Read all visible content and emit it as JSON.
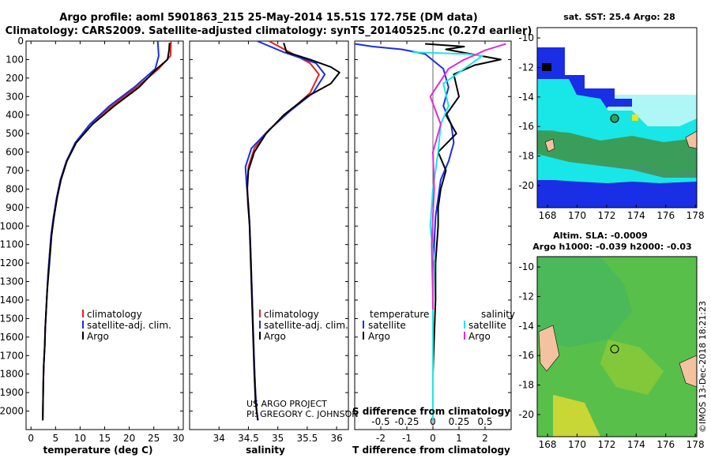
{
  "title": {
    "line1": "Argo profile: aoml 5901863_215 25-May-2014 15.51S 172.75E (DM data)",
    "line2": "Climatology: CARS2009. Satellite-adjusted climatology: synTS_20140525.nc (0.27d earlier)"
  },
  "credits": {
    "project": "US ARGO PROJECT",
    "pi": "PI: GREGORY C. JOHNSON",
    "imos": "©IMOS 13-Dec-2018 18:21:23"
  },
  "map_titles": {
    "sst": "sat. SST: 25.4 Argo: 28",
    "sla1": "Altim. SLA: -0.0009",
    "sla2": "Argo h1000: -0.039 h2000: -0.03"
  },
  "colors": {
    "red": "#e8201a",
    "blue": "#1a2ee6",
    "black": "#000000",
    "cyan": "#19e6e6",
    "magenta": "#e629d9"
  },
  "chart_data": [
    {
      "type": "line",
      "name": "temperature-profile",
      "xlabel": "temperature (deg C)",
      "xlim": [
        -1,
        31
      ],
      "ylim": [
        2100,
        0
      ],
      "xticks": [
        0,
        5,
        10,
        15,
        20,
        25,
        30
      ],
      "yticks": [
        0,
        100,
        200,
        300,
        400,
        500,
        600,
        700,
        800,
        900,
        1000,
        1100,
        1200,
        1300,
        1400,
        1500,
        1600,
        1700,
        1800,
        1900,
        2000
      ],
      "legend": [
        "climatology",
        "satellite-adj. clim.",
        "Argo"
      ],
      "series": [
        {
          "name": "climatology",
          "color": "red",
          "x": [
            28.5,
            28.4,
            26.0,
            21.5,
            16.5,
            12.0,
            9.0,
            7.2,
            6.0,
            5.2,
            4.6,
            4.1,
            3.8,
            3.5,
            3.3,
            3.1,
            2.9,
            2.8,
            2.6,
            2.5,
            2.4
          ],
          "y": [
            0,
            80,
            150,
            250,
            350,
            450,
            550,
            650,
            750,
            850,
            950,
            1050,
            1150,
            1250,
            1350,
            1450,
            1550,
            1650,
            1750,
            1850,
            2050
          ]
        },
        {
          "name": "satellite-adj. clim.",
          "color": "blue",
          "x": [
            25.8,
            26.0,
            25.3,
            21.0,
            16.0,
            12.0,
            9.0,
            7.2,
            6.0,
            5.2,
            4.6,
            4.1,
            3.8,
            3.5,
            3.3,
            3.1,
            2.9,
            2.8,
            2.6,
            2.5,
            2.4
          ],
          "y": [
            0,
            80,
            150,
            250,
            350,
            450,
            550,
            650,
            750,
            850,
            950,
            1050,
            1150,
            1250,
            1350,
            1450,
            1550,
            1650,
            1750,
            1850,
            2050
          ]
        },
        {
          "name": "Argo",
          "color": "black",
          "x": [
            28.2,
            28.1,
            27.8,
            25.6,
            22.0,
            17.0,
            12.5,
            9.2,
            7.3,
            6.1,
            5.3,
            4.7,
            4.2,
            3.9,
            3.6,
            3.3,
            3.1,
            2.9,
            2.8,
            2.6,
            2.5,
            2.4
          ],
          "y": [
            10,
            50,
            100,
            150,
            250,
            350,
            450,
            550,
            650,
            750,
            850,
            950,
            1050,
            1150,
            1250,
            1350,
            1450,
            1550,
            1650,
            1750,
            1850,
            2050
          ]
        }
      ]
    },
    {
      "type": "line",
      "name": "salinity-profile",
      "xlabel": "salinity",
      "xlim": [
        33.5,
        36.2
      ],
      "ylim": [
        2100,
        0
      ],
      "xticks": [
        34,
        34.5,
        35,
        35.5,
        36
      ],
      "legend": [
        "climatology",
        "satellite-adj. clim.",
        "Argo"
      ],
      "series": [
        {
          "name": "climatology",
          "color": "red",
          "x": [
            34.85,
            35.2,
            35.55,
            35.7,
            35.55,
            35.2,
            34.85,
            34.6,
            34.5,
            34.48,
            34.49,
            34.52,
            34.54,
            34.56,
            34.58,
            34.6,
            34.62,
            34.64,
            34.66
          ],
          "y": [
            0,
            60,
            120,
            180,
            280,
            380,
            480,
            580,
            680,
            780,
            880,
            980,
            1150,
            1350,
            1550,
            1750,
            1900,
            2000,
            2050
          ]
        },
        {
          "name": "satellite-adj. clim.",
          "color": "blue",
          "x": [
            34.65,
            35.1,
            35.65,
            35.8,
            35.6,
            35.2,
            34.85,
            34.55,
            34.45,
            34.47,
            34.5,
            34.52,
            34.54,
            34.56,
            34.58,
            34.6,
            34.62,
            34.64,
            34.66
          ],
          "y": [
            0,
            60,
            120,
            180,
            280,
            380,
            480,
            580,
            680,
            780,
            880,
            980,
            1150,
            1350,
            1550,
            1750,
            1900,
            2000,
            2050
          ]
        },
        {
          "name": "Argo",
          "color": "black",
          "x": [
            35.1,
            35.15,
            35.55,
            35.9,
            36.05,
            35.9,
            35.5,
            35.1,
            34.8,
            34.6,
            34.5,
            34.48,
            34.5,
            34.52,
            34.54,
            34.56,
            34.58,
            34.6,
            34.62,
            34.64,
            34.66
          ],
          "y": [
            10,
            60,
            100,
            140,
            170,
            230,
            300,
            400,
            500,
            600,
            700,
            800,
            900,
            1000,
            1200,
            1400,
            1600,
            1800,
            1950,
            2000,
            2050
          ]
        }
      ]
    },
    {
      "type": "line",
      "name": "difference-profile",
      "xlabel": "T difference from climatology",
      "xlabel_top": "S difference from climatology",
      "xlim": [
        -3,
        3
      ],
      "ylim": [
        2100,
        0
      ],
      "xticks": [
        -2,
        -1,
        0,
        1,
        2
      ],
      "xticks_top": [
        "-0.5",
        "-0.25",
        "0",
        "0.25",
        "0.5"
      ],
      "xticks_top_pos": [
        -2,
        -1,
        0,
        1,
        2
      ],
      "legend_left_title": "temperature",
      "legend_right_title": "salinity",
      "legend_left": [
        "satellite",
        "Argo"
      ],
      "legend_right": [
        "satellite",
        "Argo"
      ],
      "series": [
        {
          "name": "T satellite",
          "color": "blue",
          "x": [
            -3.0,
            -2.3,
            -1.2,
            -0.3,
            0.4,
            0.6,
            0.4,
            0.7,
            0.8,
            0.6,
            0.3,
            0.2,
            0.1,
            0.05,
            0.0,
            0.0,
            0.0,
            0.0,
            0.0
          ],
          "y": [
            15,
            30,
            45,
            70,
            150,
            250,
            350,
            450,
            550,
            650,
            750,
            850,
            950,
            1100,
            1300,
            1500,
            1700,
            1900,
            2050
          ]
        },
        {
          "name": "T Argo",
          "color": "black",
          "x": [
            -0.3,
            1.2,
            0.5,
            2.6,
            1.6,
            0.8,
            1.0,
            0.5,
            0.9,
            0.2,
            0.5,
            0.3,
            0.2,
            0.2,
            0.1,
            0.1,
            0.05,
            0.0,
            0.0
          ],
          "y": [
            15,
            30,
            45,
            100,
            130,
            180,
            300,
            400,
            500,
            600,
            700,
            800,
            900,
            1000,
            1200,
            1400,
            1600,
            1800,
            2050
          ]
        },
        {
          "name": "S satellite",
          "color": "cyan",
          "x": [
            -0.8,
            1.3,
            1.9,
            1.2,
            0.4,
            0.6,
            0.3,
            0.2,
            0.0,
            -0.1,
            0.05,
            0.0,
            0.0,
            0.0,
            0.0
          ],
          "y": [
            60,
            70,
            80,
            150,
            230,
            350,
            450,
            600,
            800,
            1000,
            1200,
            1400,
            1600,
            1800,
            2050
          ]
        },
        {
          "name": "S Argo",
          "color": "magenta",
          "x": [
            2.8,
            2.0,
            1.7,
            1.2,
            0.6,
            -0.1,
            0.3,
            0.0,
            0.05,
            -0.05,
            0.0,
            0.0
          ],
          "y": [
            15,
            50,
            70,
            100,
            150,
            300,
            450,
            600,
            800,
            1100,
            1400,
            1450
          ]
        }
      ]
    },
    {
      "type": "heatmap",
      "name": "sst-map",
      "xticks": [
        168,
        170,
        172,
        174,
        176,
        178
      ],
      "yticks": [
        -10,
        -12,
        -14,
        -16,
        -18,
        -20
      ],
      "xlim": [
        167.3,
        178.1
      ],
      "ylim": [
        -21.5,
        -9.3
      ],
      "float_lon": 172.75,
      "float_lat": -15.51
    },
    {
      "type": "heatmap",
      "name": "sla-map",
      "xticks": [
        168,
        170,
        172,
        174,
        176,
        178
      ],
      "yticks": [
        -10,
        -12,
        -14,
        -16,
        -18,
        -20
      ],
      "xlim": [
        167.3,
        178.1
      ],
      "ylim": [
        -21.5,
        -9.3
      ],
      "float_lon": 172.75,
      "float_lat": -15.51
    }
  ]
}
